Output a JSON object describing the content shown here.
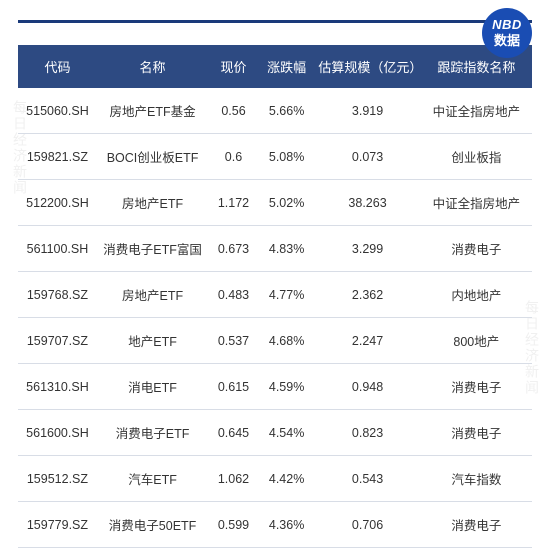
{
  "badge": {
    "top": "NBD",
    "bottom": "数据"
  },
  "watermark": "每日经济新闻",
  "columns": [
    {
      "key": "code",
      "label": "代码",
      "cls": "col-code"
    },
    {
      "key": "name",
      "label": "名称",
      "cls": "col-name"
    },
    {
      "key": "price",
      "label": "现价",
      "cls": "col-price"
    },
    {
      "key": "change",
      "label": "涨跌幅",
      "cls": "col-change"
    },
    {
      "key": "scale",
      "label": "估算规模（亿元）",
      "cls": "col-scale"
    },
    {
      "key": "index",
      "label": "跟踪指数名称",
      "cls": "col-index"
    }
  ],
  "rows": [
    {
      "code": "515060.SH",
      "name": "房地产ETF基金",
      "price": "0.56",
      "change": "5.66%",
      "scale": "3.919",
      "index": "中证全指房地产"
    },
    {
      "code": "159821.SZ",
      "name": "BOCI创业板ETF",
      "price": "0.6",
      "change": "5.08%",
      "scale": "0.073",
      "index": "创业板指"
    },
    {
      "code": "512200.SH",
      "name": "房地产ETF",
      "price": "1.172",
      "change": "5.02%",
      "scale": "38.263",
      "index": "中证全指房地产"
    },
    {
      "code": "561100.SH",
      "name": "消费电子ETF富国",
      "price": "0.673",
      "change": "4.83%",
      "scale": "3.299",
      "index": "消费电子"
    },
    {
      "code": "159768.SZ",
      "name": "房地产ETF",
      "price": "0.483",
      "change": "4.77%",
      "scale": "2.362",
      "index": "内地地产"
    },
    {
      "code": "159707.SZ",
      "name": "地产ETF",
      "price": "0.537",
      "change": "4.68%",
      "scale": "2.247",
      "index": "800地产"
    },
    {
      "code": "561310.SH",
      "name": "消电ETF",
      "price": "0.615",
      "change": "4.59%",
      "scale": "0.948",
      "index": "消费电子"
    },
    {
      "code": "561600.SH",
      "name": "消费电子ETF",
      "price": "0.645",
      "change": "4.54%",
      "scale": "0.823",
      "index": "消费电子"
    },
    {
      "code": "159512.SZ",
      "name": "汽车ETF",
      "price": "1.062",
      "change": "4.42%",
      "scale": "0.543",
      "index": "汽车指数"
    },
    {
      "code": "159779.SZ",
      "name": "消费电子50ETF",
      "price": "0.599",
      "change": "4.36%",
      "scale": "0.706",
      "index": "消费电子"
    }
  ]
}
